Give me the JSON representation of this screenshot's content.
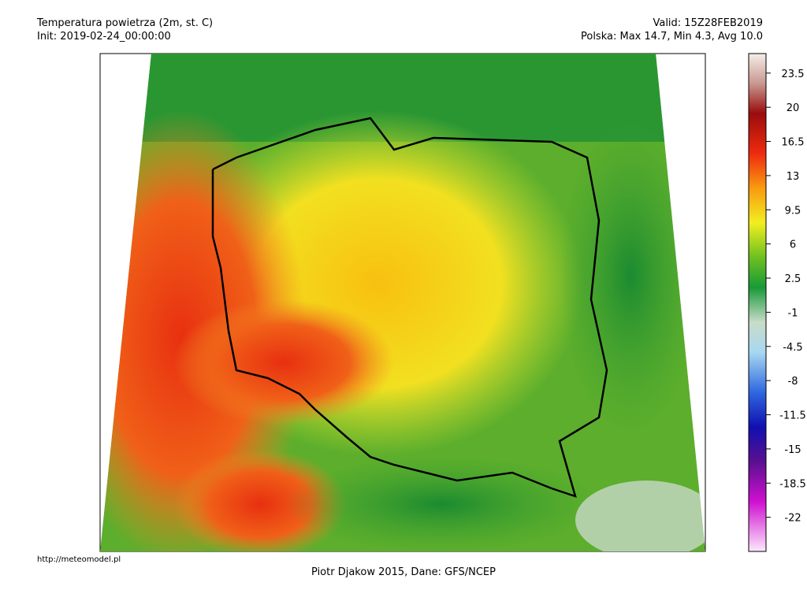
{
  "header": {
    "title": "Temperatura powietrza (2m, st. C)",
    "init": "Init: 2019-02-24_00:00:00",
    "valid": "Valid: 15Z28FEB2019",
    "stats": "Polska: Max 14.7, Min  4.3, Avg 10.0"
  },
  "colorbar": {
    "range": [
      -25.5,
      25.5
    ],
    "ticks": [
      23.5,
      20,
      16.5,
      13,
      9.5,
      6,
      2.5,
      -1,
      -4.5,
      -8,
      -11.5,
      -15,
      -18.5,
      -22
    ]
  },
  "footer": {
    "credit": "Piotr Djakow 2015, Dane: GFS/NCEP",
    "url": "http://meteomodel.pl"
  }
}
